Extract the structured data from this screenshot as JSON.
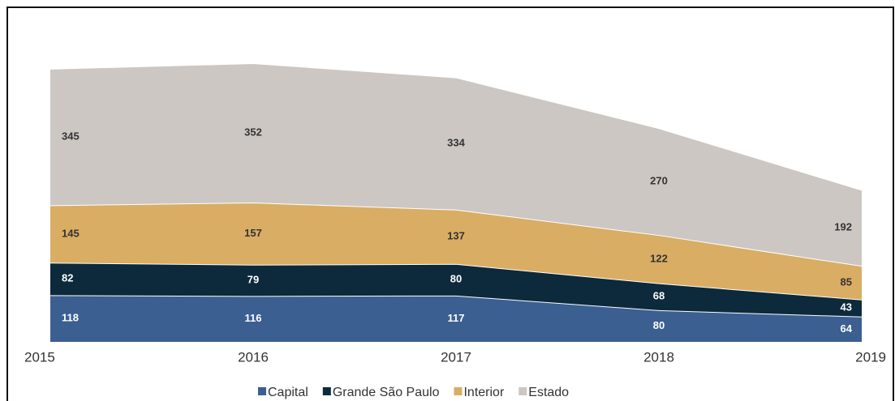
{
  "chart_data": {
    "type": "stacked_area",
    "categories": [
      "2015",
      "2016",
      "2017",
      "2018",
      "2019"
    ],
    "series": [
      {
        "name": "Capital",
        "color": "#3b5f91",
        "values": [
          118,
          116,
          117,
          80,
          64
        ]
      },
      {
        "name": "Grande São Paulo",
        "color": "#0c2a3c",
        "values": [
          82,
          79,
          80,
          68,
          43
        ]
      },
      {
        "name": "Interior",
        "color": "#d9ad63",
        "values": [
          145,
          157,
          137,
          122,
          85
        ]
      },
      {
        "name": "Estado",
        "color": "#cdc7c3",
        "values": [
          345,
          352,
          334,
          270,
          192
        ]
      }
    ],
    "legend": "bottom"
  }
}
